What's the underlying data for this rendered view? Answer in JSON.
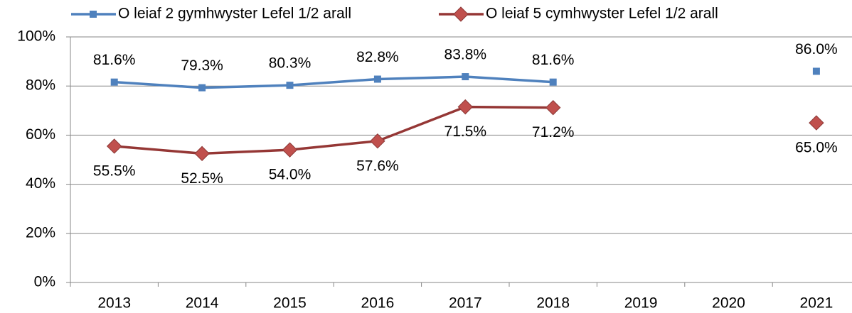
{
  "chart_data": {
    "type": "line",
    "categories": [
      "2013",
      "2014",
      "2015",
      "2016",
      "2017",
      "2018",
      "2019",
      "2020",
      "2021"
    ],
    "series": [
      {
        "name": "O leiaf 2 gymhwyster Lefel 1/2 arall",
        "color": "#4f81bd",
        "marker": "square",
        "values": [
          81.6,
          79.3,
          80.3,
          82.8,
          83.8,
          81.6,
          null,
          null,
          86.0
        ],
        "value_labels": [
          "81.6%",
          "79.3%",
          "80.3%",
          "82.8%",
          "83.8%",
          "81.6%",
          null,
          null,
          "86.0%"
        ]
      },
      {
        "name": "O leiaf 5 cymhwyster Lefel 1/2 arall",
        "color": "#953735",
        "marker": "diamond",
        "values": [
          55.5,
          52.5,
          54.0,
          57.6,
          71.5,
          71.2,
          null,
          null,
          65.0
        ],
        "value_labels": [
          "55.5%",
          "52.5%",
          "54.0%",
          "57.6%",
          "71.5%",
          "71.2%",
          null,
          null,
          "65.0%"
        ]
      }
    ],
    "ylim": [
      0,
      100
    ],
    "yticks": [
      {
        "value": 0,
        "label": "0%"
      },
      {
        "value": 20,
        "label": "20%"
      },
      {
        "value": 40,
        "label": "40%"
      },
      {
        "value": 60,
        "label": "60%"
      },
      {
        "value": 80,
        "label": "80%"
      },
      {
        "value": 100,
        "label": "100%"
      }
    ],
    "grid": true,
    "legend": "top"
  }
}
